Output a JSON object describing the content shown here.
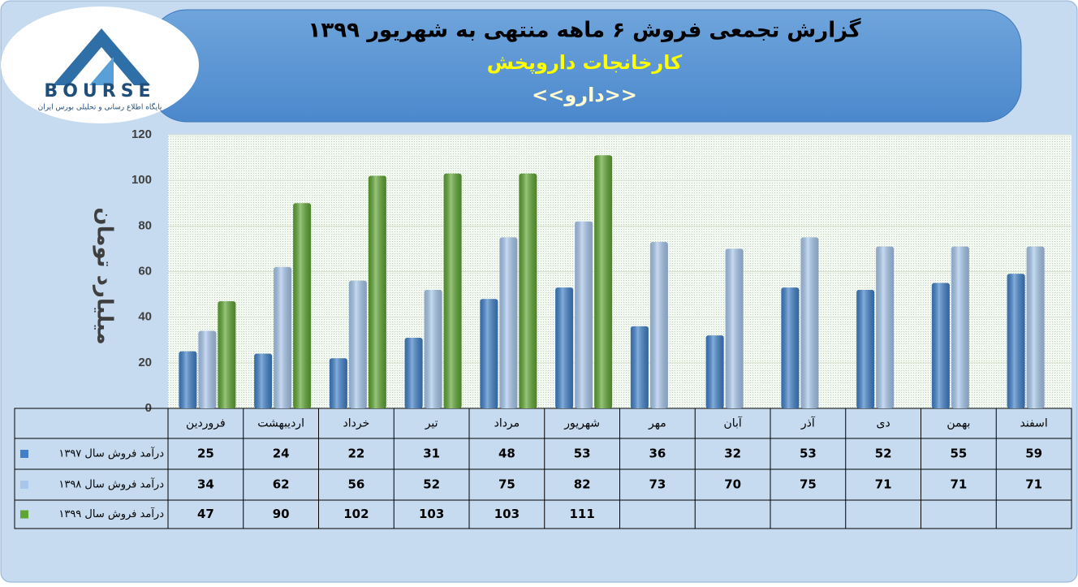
{
  "logo": {
    "text": "BOURSE",
    "caption": "پایگاه اطلاع رسانی و تحلیلی بورس ایران"
  },
  "chart_data": {
    "type": "bar",
    "title": "گزارش تجمعی فروش ۶ ماهه منتهی به شهریور ۱۳۹۹",
    "subtitle": "کارخانجات داروپخش",
    "annotation": "<<دارو>>",
    "y_label": "میلیارد تومان",
    "categories": [
      "فروردین",
      "اردیبهشت",
      "خرداد",
      "تیر",
      "مرداد",
      "شهریور",
      "مهر",
      "آبان",
      "آذر",
      "دی",
      "بهمن",
      "اسفند"
    ],
    "series": [
      {
        "name": "درآمد فروش سال ۱۳۹۷",
        "color": "#3f80c8",
        "values": [
          25,
          24,
          22,
          31,
          48,
          53,
          36,
          32,
          53,
          52,
          55,
          59
        ]
      },
      {
        "name": "درآمد فروش سال ۱۳۹۸",
        "color": "#a7c7ec",
        "values": [
          34,
          62,
          56,
          52,
          75,
          82,
          73,
          70,
          75,
          71,
          71,
          71
        ]
      },
      {
        "name": "درآمد فروش سال ۱۳۹۹",
        "color": "#5ea532",
        "values": [
          47,
          90,
          102,
          103,
          103,
          111,
          null,
          null,
          null,
          null,
          null,
          null
        ]
      }
    ],
    "ylim": [
      0,
      120
    ],
    "yticks": [
      0,
      20,
      40,
      60,
      80,
      100,
      120
    ],
    "grid": true
  }
}
